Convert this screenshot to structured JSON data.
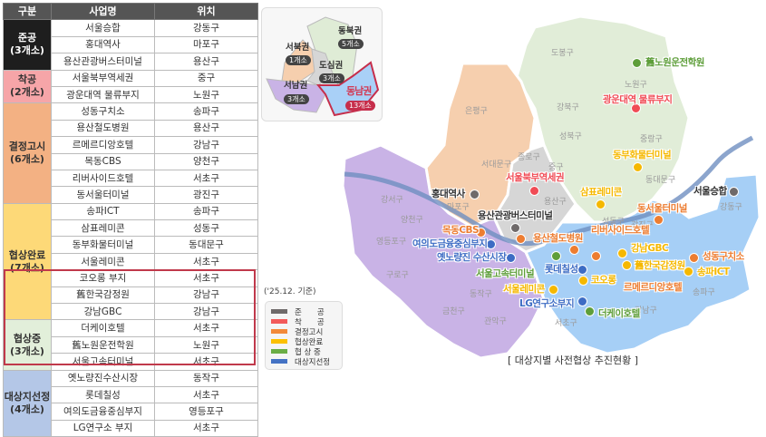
{
  "table": {
    "headers": [
      "구분",
      "사업명",
      "위치"
    ],
    "groups": [
      {
        "label": "준공",
        "count": "(3개소)",
        "color": "#1e1e1e",
        "text": "#ffffff",
        "rows": [
          [
            "서울승합",
            "강동구"
          ],
          [
            "홍대역사",
            "마포구"
          ],
          [
            "용산관광버스터미널",
            "용산구"
          ]
        ]
      },
      {
        "label": "착공",
        "count": "(2개소)",
        "color": "#f6a5a8",
        "text": "#333333",
        "rows": [
          [
            "서울북부역세권",
            "중구"
          ],
          [
            "광운대역 물류부지",
            "노원구"
          ]
        ]
      },
      {
        "label": "결정고시",
        "count": "(6개소)",
        "color": "#f3b183",
        "text": "#333333",
        "rows": [
          [
            "성동구치소",
            "송파구"
          ],
          [
            "용산철도병원",
            "용산구"
          ],
          [
            "르메르디앙호텔",
            "강남구"
          ],
          [
            "목동CBS",
            "양천구"
          ],
          [
            "리버사이드호텔",
            "서초구"
          ],
          [
            "동서울터미널",
            "광진구"
          ]
        ]
      },
      {
        "label": "협상완료",
        "count": "(7개소)",
        "color": "#fdd978",
        "text": "#333333",
        "rows": [
          [
            "송파ICT",
            "송파구"
          ],
          [
            "삼표레미콘",
            "성동구"
          ],
          [
            "동부화물터미널",
            "동대문구"
          ],
          [
            "서울레미콘",
            "서초구"
          ],
          [
            "코오롱 부지",
            "서초구"
          ],
          [
            "舊한국감정원",
            "강남구"
          ],
          [
            "강남GBC",
            "강남구"
          ]
        ]
      },
      {
        "label": "협상중",
        "count": "(3개소)",
        "color": "#e2efda",
        "text": "#333333",
        "rows": [
          [
            "더케이호텔",
            "서초구"
          ],
          [
            "舊노원운전학원",
            "노원구"
          ],
          [
            "서울고속터미널",
            "서초구"
          ]
        ]
      },
      {
        "label": "대상지선정",
        "count": "(4개소)",
        "color": "#b4c7e7",
        "text": "#333333",
        "rows": [
          [
            "옛노량진수산시장",
            "동작구"
          ],
          [
            "롯데칠성",
            "서초구"
          ],
          [
            "여의도금융중심부지",
            "영등포구"
          ],
          [
            "LG연구소 부지",
            "서초구"
          ]
        ]
      }
    ]
  },
  "inset": {
    "regions": [
      {
        "name": "동북권",
        "count": "5개소"
      },
      {
        "name": "서북권",
        "count": "1개소"
      },
      {
        "name": "도심권",
        "count": "3개소"
      },
      {
        "name": "서남권",
        "count": "3개소"
      },
      {
        "name": "동남권",
        "count": "13개소"
      }
    ]
  },
  "note": "('25.12. 기준)",
  "legend": [
    {
      "label": "준　　공",
      "color": "#6f6a6a"
    },
    {
      "label": "착　　공",
      "color": "#f25a5a"
    },
    {
      "label": "결정고시",
      "color": "#f28a3a"
    },
    {
      "label": "협상완료",
      "color": "#fcc000"
    },
    {
      "label": "협 상 중",
      "color": "#6aad45"
    },
    {
      "label": "대상지선정",
      "color": "#4472c4"
    }
  ],
  "status_colors": {
    "done": "#6f6a6a",
    "start": "#f04b55",
    "decided": "#ed7d31",
    "agreed": "#f5b800",
    "nego": "#5e9e3a",
    "selected": "#3d6cc4"
  },
  "markers": [
    {
      "label": "舊노원운전학원",
      "status": "nego"
    },
    {
      "label": "광운대역 물류부지",
      "status": "start"
    },
    {
      "label": "동부화물터미널",
      "status": "agreed"
    },
    {
      "label": "서울북부역세권",
      "status": "start"
    },
    {
      "label": "홍대역사",
      "status": "done"
    },
    {
      "label": "삼표레미콘",
      "status": "agreed"
    },
    {
      "label": "동서울터미널",
      "status": "decided"
    },
    {
      "label": "서울승합",
      "status": "done"
    },
    {
      "label": "용산관광버스터미널",
      "status": "done"
    },
    {
      "label": "목동CBS",
      "status": "decided"
    },
    {
      "label": "용산철도병원",
      "status": "decided"
    },
    {
      "label": "리버사이드호텔",
      "status": "decided"
    },
    {
      "label": "여의도금융중심부지",
      "status": "selected"
    },
    {
      "label": "옛노량진 수산시장",
      "status": "selected"
    },
    {
      "label": "롯데칠성",
      "status": "selected"
    },
    {
      "label": "서울고속터미널",
      "status": "nego"
    },
    {
      "label": "강남GBC",
      "status": "agreed"
    },
    {
      "label": "성동구치소",
      "status": "decided"
    },
    {
      "label": "舊한국감정원",
      "status": "agreed"
    },
    {
      "label": "송파ICT",
      "status": "agreed"
    },
    {
      "label": "코오롱",
      "status": "agreed"
    },
    {
      "label": "르메르디앙호텔",
      "status": "decided"
    },
    {
      "label": "서울레미콘",
      "status": "agreed"
    },
    {
      "label": "LG연구소부지",
      "status": "selected"
    },
    {
      "label": "더케이호텔",
      "status": "nego"
    }
  ],
  "districts": [
    "도봉구",
    "노원구",
    "강북구",
    "성북구",
    "중랑구",
    "종로구",
    "동대문구",
    "중구",
    "서대문구",
    "마포구",
    "용산구",
    "성동구",
    "광진구",
    "강동구",
    "송파구",
    "강남구",
    "서초구",
    "동작구",
    "영등포구",
    "강서구",
    "양천구",
    "구로구",
    "금천구",
    "관악구",
    "은평구"
  ],
  "caption": "[ 대상지별 사전협상 추진현황 ]"
}
